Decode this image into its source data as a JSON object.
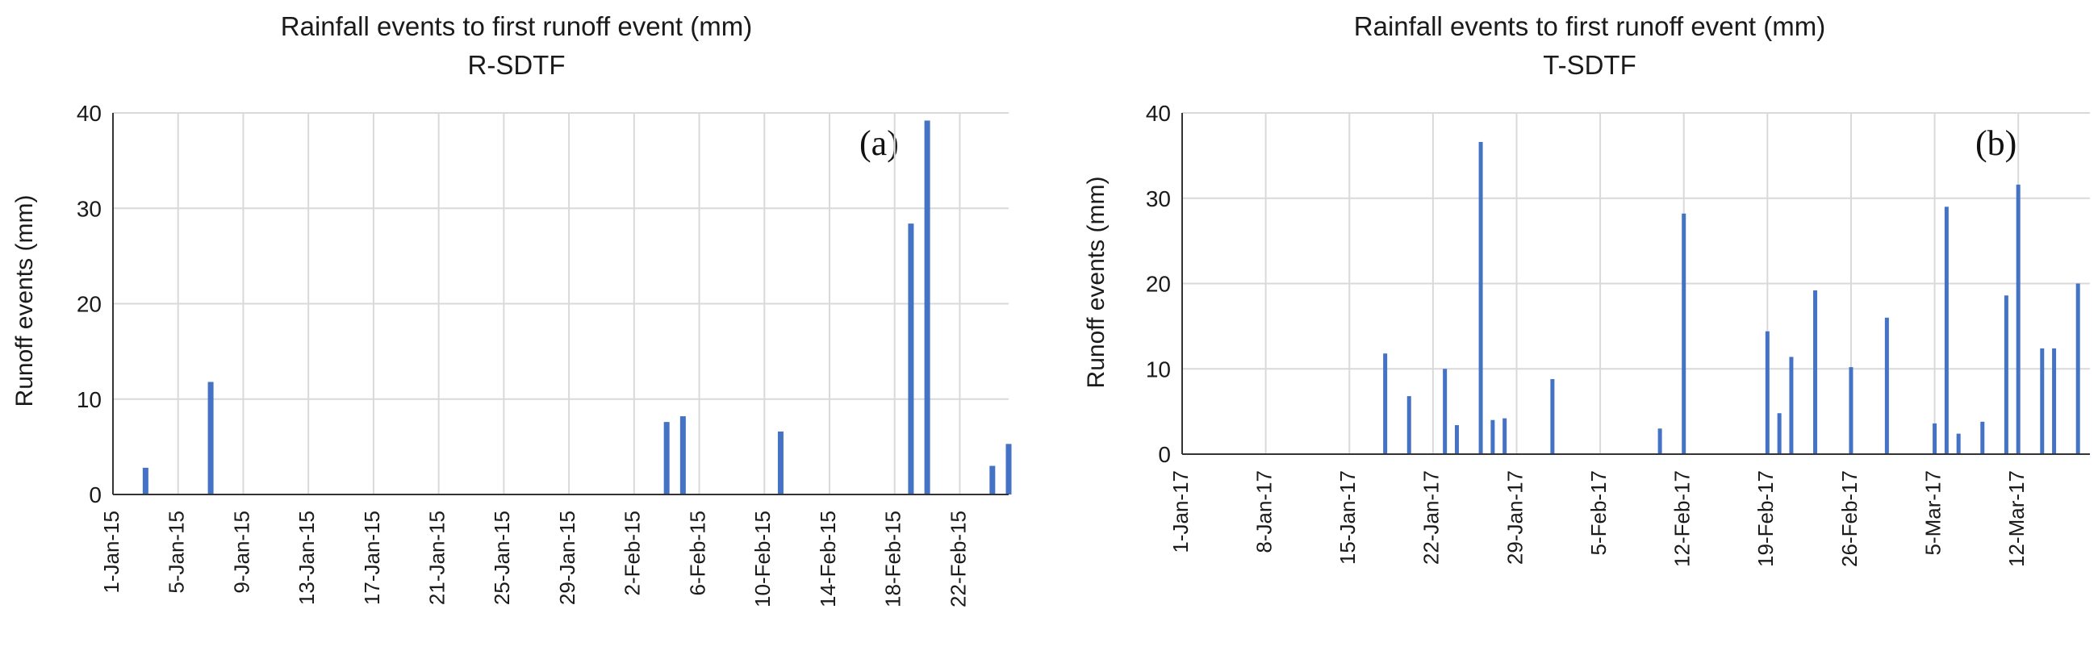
{
  "chart_data": [
    {
      "type": "bar",
      "title": "Rainfall events to first runoff event (mm)",
      "subtitle": "R-SDTF",
      "panel_label": "(a)",
      "ylabel": "Runoff events (mm)",
      "xlabel": "",
      "ylim": [
        0,
        40
      ],
      "yticks": [
        "0",
        "10",
        "20",
        "30",
        "40"
      ],
      "xlim": [
        "2015-01-01",
        "2015-02-25"
      ],
      "xtick_labels": [
        "1-Jan-15",
        "5-Jan-15",
        "9-Jan-15",
        "13-Jan-15",
        "17-Jan-15",
        "21-Jan-15",
        "25-Jan-15",
        "29-Jan-15",
        "2-Feb-15",
        "6-Feb-15",
        "10-Feb-15",
        "14-Feb-15",
        "18-Feb-15",
        "22-Feb-15"
      ],
      "grid": true,
      "bar_color": "#4472c4",
      "points": [
        {
          "date": "2015-01-03",
          "value": 2.8
        },
        {
          "date": "2015-01-07",
          "value": 11.8
        },
        {
          "date": "2015-02-04",
          "value": 7.6
        },
        {
          "date": "2015-02-05",
          "value": 8.2
        },
        {
          "date": "2015-02-11",
          "value": 6.6
        },
        {
          "date": "2015-02-19",
          "value": 28.4
        },
        {
          "date": "2015-02-20",
          "value": 39.2
        },
        {
          "date": "2015-02-24",
          "value": 3.0
        },
        {
          "date": "2015-02-25",
          "value": 5.3
        }
      ]
    },
    {
      "type": "bar",
      "title": "Rainfall events to first runoff event (mm)",
      "subtitle": "T-SDTF",
      "panel_label": "(b)",
      "ylabel": "Runoff events (mm)",
      "xlabel": "",
      "ylim": [
        0,
        40
      ],
      "yticks": [
        "0",
        "10",
        "20",
        "30",
        "40"
      ],
      "xlim": [
        "2017-01-01",
        "2017-03-18"
      ],
      "xtick_labels": [
        "1-Jan-17",
        "8-Jan-17",
        "15-Jan-17",
        "22-Jan-17",
        "29-Jan-17",
        "5-Feb-17",
        "12-Feb-17",
        "19-Feb-17",
        "26-Feb-17",
        "5-Mar-17",
        "12-Mar-17"
      ],
      "grid": true,
      "bar_color": "#4472c4",
      "points": [
        {
          "date": "2017-01-18",
          "value": 11.8
        },
        {
          "date": "2017-01-20",
          "value": 6.8
        },
        {
          "date": "2017-01-23",
          "value": 10.0
        },
        {
          "date": "2017-01-24",
          "value": 3.4
        },
        {
          "date": "2017-01-26",
          "value": 36.6
        },
        {
          "date": "2017-01-27",
          "value": 4.0
        },
        {
          "date": "2017-01-28",
          "value": 4.2
        },
        {
          "date": "2017-02-01",
          "value": 8.8
        },
        {
          "date": "2017-02-10",
          "value": 3.0
        },
        {
          "date": "2017-02-12",
          "value": 28.2
        },
        {
          "date": "2017-02-19",
          "value": 14.4
        },
        {
          "date": "2017-02-20",
          "value": 4.8
        },
        {
          "date": "2017-02-21",
          "value": 11.4
        },
        {
          "date": "2017-02-23",
          "value": 19.2
        },
        {
          "date": "2017-02-26",
          "value": 10.2
        },
        {
          "date": "2017-03-01",
          "value": 16.0
        },
        {
          "date": "2017-03-05",
          "value": 3.6
        },
        {
          "date": "2017-03-06",
          "value": 29.0
        },
        {
          "date": "2017-03-07",
          "value": 2.4
        },
        {
          "date": "2017-03-09",
          "value": 3.8
        },
        {
          "date": "2017-03-11",
          "value": 18.6
        },
        {
          "date": "2017-03-12",
          "value": 31.6
        },
        {
          "date": "2017-03-14",
          "value": 12.4
        },
        {
          "date": "2017-03-15",
          "value": 12.4
        },
        {
          "date": "2017-03-17",
          "value": 20.0
        }
      ]
    }
  ]
}
